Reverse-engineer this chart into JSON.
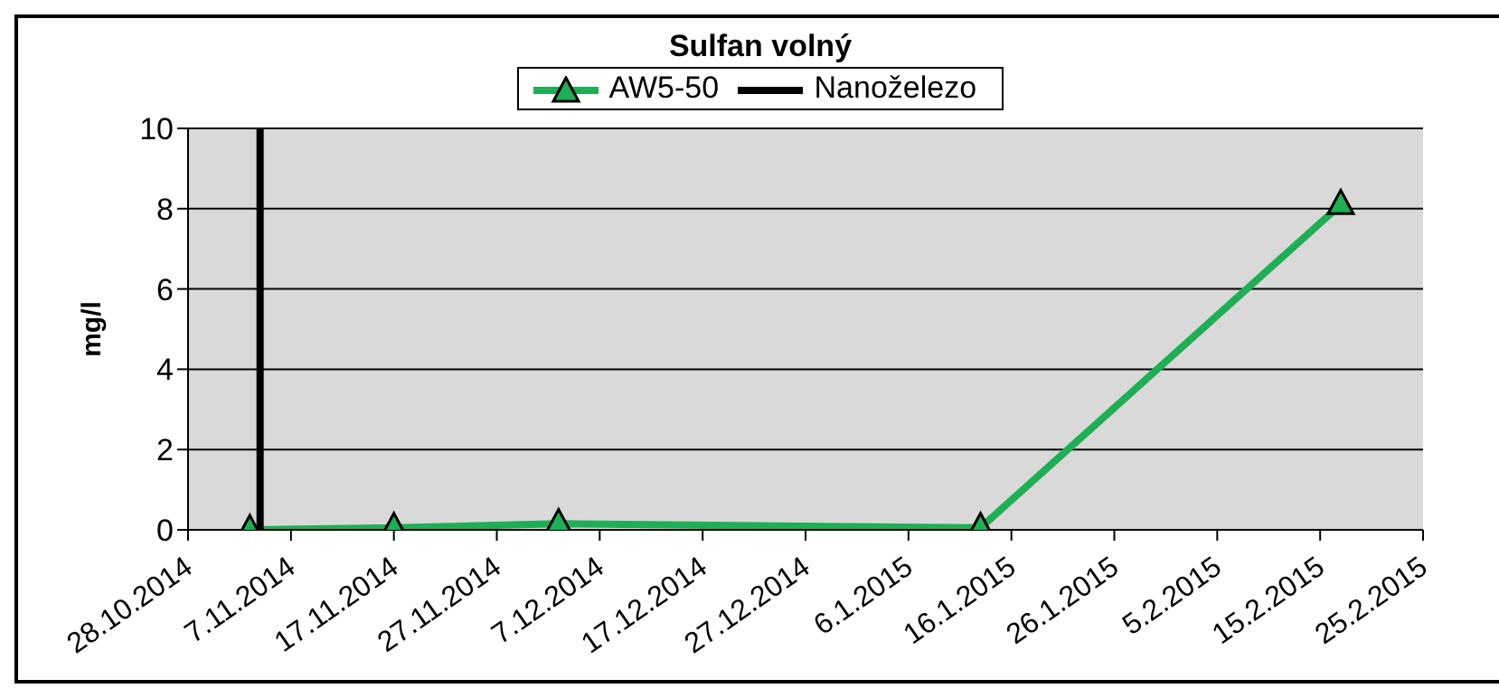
{
  "chart_data": {
    "type": "line",
    "title": "Sulfan volný",
    "ylabel": "mg/l",
    "series": [
      {
        "name": "AW5-50",
        "color": "#1fae55",
        "marker": "triangle",
        "x": [
          "2014-11-03",
          "2014-11-17",
          "2014-12-03",
          "2015-01-13",
          "2015-02-17"
        ],
        "values": [
          0,
          0.05,
          0.15,
          0.05,
          8.1
        ]
      },
      {
        "name": "Nanoželezo",
        "color": "#000000",
        "marker": "none",
        "x": [
          "2014-11-04",
          "2014-11-04"
        ],
        "values": [
          0,
          10
        ]
      }
    ],
    "xlim": [
      "2014-10-28",
      "2015-02-25"
    ],
    "xticks": [
      {
        "value": "2014-10-28",
        "label": "28.10.2014"
      },
      {
        "value": "2014-11-07",
        "label": "7.11.2014"
      },
      {
        "value": "2014-11-17",
        "label": "17.11.2014"
      },
      {
        "value": "2014-11-27",
        "label": "27.11.2014"
      },
      {
        "value": "2014-12-07",
        "label": "7.12.2014"
      },
      {
        "value": "2014-12-17",
        "label": "17.12.2014"
      },
      {
        "value": "2014-12-27",
        "label": "27.12.2014"
      },
      {
        "value": "2015-01-06",
        "label": "6.1.2015"
      },
      {
        "value": "2015-01-16",
        "label": "16.1.2015"
      },
      {
        "value": "2015-01-26",
        "label": "26.1.2015"
      },
      {
        "value": "2015-02-05",
        "label": "5.2.2015"
      },
      {
        "value": "2015-02-15",
        "label": "15.2.2015"
      },
      {
        "value": "2015-02-25",
        "label": "25.2.2015"
      }
    ],
    "ylim": [
      0,
      10
    ],
    "yticks": [
      0,
      2,
      4,
      6,
      8,
      10
    ],
    "grid": "y",
    "legend": "top"
  }
}
